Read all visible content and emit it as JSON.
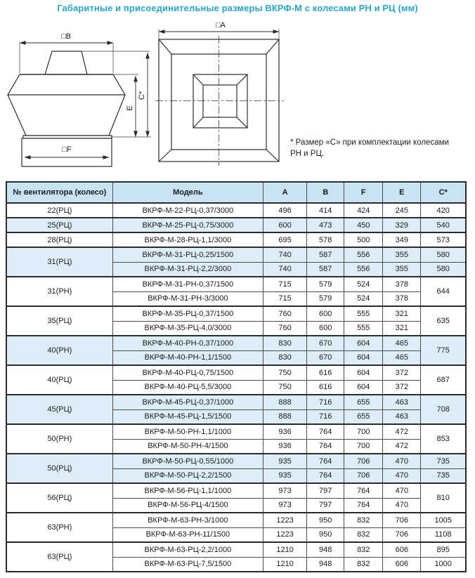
{
  "title": "Габаритные и присоединительные размеры ВКРФ-М с колесами РН и РЦ (мм)",
  "note": {
    "line1": "* Размер «С» при комплектации колесами",
    "line2": "РН и РЦ."
  },
  "diagram": {
    "labels": {
      "a": "□A",
      "b": "□B",
      "f": "□F",
      "e": "E",
      "c": "C*"
    }
  },
  "colors": {
    "title_accent": "#2aa5c6",
    "header_bg": "#c8e4f2",
    "row_alt_bg": "#dcedf7",
    "border": "#2b2b2b"
  },
  "table": {
    "headers": [
      "№ вентилятора (колесо)",
      "Модель",
      "A",
      "B",
      "F",
      "E",
      "C*"
    ],
    "groups": [
      {
        "no": "22(РЦ)",
        "alt": false,
        "rows": [
          {
            "model": "ВКРФ-М-22-РЦ-0,37/3000",
            "a": "496",
            "b": "414",
            "f": "424",
            "e": "245",
            "c": "420"
          }
        ]
      },
      {
        "no": "25(РЦ)",
        "alt": true,
        "rows": [
          {
            "model": "ВКРФ-М-25-РЦ-0,75/3000",
            "a": "600",
            "b": "473",
            "f": "450",
            "e": "329",
            "c": "540"
          }
        ]
      },
      {
        "no": "28(РЦ)",
        "alt": false,
        "rows": [
          {
            "model": "ВКРФ-М-28-РЦ-1,1/3000",
            "a": "695",
            "b": "578",
            "f": "500",
            "e": "349",
            "c": "573"
          }
        ]
      },
      {
        "no": "31(РЦ)",
        "alt": true,
        "rows": [
          {
            "model": "ВКРФ-М-31-РЦ-0,25/1500",
            "a": "740",
            "b": "587",
            "f": "556",
            "e": "355",
            "c": "580"
          },
          {
            "model": "ВКРФ-М-31-РЦ-2,2/3000",
            "a": "740",
            "b": "587",
            "f": "556",
            "e": "355",
            "c": "580"
          }
        ]
      },
      {
        "no": "31(РН)",
        "alt": false,
        "c_merged": "644",
        "rows": [
          {
            "model": "ВКРФ-М-31-РН-0,37/1500",
            "a": "715",
            "b": "579",
            "f": "524",
            "e": "378"
          },
          {
            "model": "ВКРФ-М-31-РН-3/3000",
            "a": "715",
            "b": "579",
            "f": "524",
            "e": "378"
          }
        ]
      },
      {
        "no": "35(РЦ)",
        "alt": false,
        "c_merged": "635",
        "rows": [
          {
            "model": "ВКРФ-М-35-РЦ-0,37/1500",
            "a": "760",
            "b": "600",
            "f": "555",
            "e": "321"
          },
          {
            "model": "ВКРФ-М-35-РЦ-4,0/3000",
            "a": "760",
            "b": "600",
            "f": "555",
            "e": "321"
          }
        ]
      },
      {
        "no": "40(РН)",
        "alt": true,
        "c_merged": "775",
        "rows": [
          {
            "model": "ВКРФ-М-40-РН-0,37/1000",
            "a": "830",
            "b": "670",
            "f": "604",
            "e": "465"
          },
          {
            "model": "ВКРФ-М-40-РН-1,1/1500",
            "a": "830",
            "b": "670",
            "f": "604",
            "e": "465"
          }
        ]
      },
      {
        "no": "40(РЦ)",
        "alt": false,
        "c_merged": "687",
        "rows": [
          {
            "model": "ВКРФ-М-40-РЦ-0,75/1500",
            "a": "750",
            "b": "616",
            "f": "604",
            "e": "372"
          },
          {
            "model": "ВКРФ-М-40-РЦ-5,5/3000",
            "a": "750",
            "b": "616",
            "f": "604",
            "e": "372"
          }
        ]
      },
      {
        "no": "45(РЦ)",
        "alt": true,
        "c_merged": "708",
        "rows": [
          {
            "model": "ВКРФ-М-45-РЦ-0,37/1000",
            "a": "888",
            "b": "716",
            "f": "655",
            "e": "463"
          },
          {
            "model": "ВКРФ-М-45-РЦ-1,5/1500",
            "a": "888",
            "b": "716",
            "f": "655",
            "e": "463"
          }
        ]
      },
      {
        "no": "50(РН)",
        "alt": false,
        "c_merged": "853",
        "rows": [
          {
            "model": "ВКРФ-М-50-РН-1,1/1000",
            "a": "936",
            "b": "764",
            "f": "700",
            "e": "472"
          },
          {
            "model": "ВКРФ-М-50-РН-4/1500",
            "a": "936",
            "b": "764",
            "f": "700",
            "e": "472"
          }
        ]
      },
      {
        "no": "50(РЦ)",
        "alt": true,
        "rows": [
          {
            "model": "ВКРФ-М-50-РЦ-0,55/1000",
            "a": "935",
            "b": "764",
            "f": "706",
            "e": "470",
            "c": "735"
          },
          {
            "model": "ВКРФ-М-50-РЦ-2,2/1500",
            "a": "935",
            "b": "764",
            "f": "706",
            "e": "470",
            "c": "735"
          }
        ]
      },
      {
        "no": "56(РЦ)",
        "alt": false,
        "c_merged": "810",
        "rows": [
          {
            "model": "ВКРФ-М-56-РЦ-1,1/1000",
            "a": "973",
            "b": "797",
            "f": "764",
            "e": "470"
          },
          {
            "model": "ВКРФ-М-56-РЦ-4/1500",
            "a": "973",
            "b": "797",
            "f": "764",
            "e": "470"
          }
        ]
      },
      {
        "no": "63(РН)",
        "alt": false,
        "rows": [
          {
            "model": "ВКРФ-М-63-РН-3/1000",
            "a": "1223",
            "b": "950",
            "f": "832",
            "e": "706",
            "c": "1005"
          },
          {
            "model": "ВКРФ-М-63-РН-11/1500",
            "a": "1223",
            "b": "950",
            "f": "832",
            "e": "706",
            "c": "1108"
          }
        ]
      },
      {
        "no": "63(РЦ)",
        "alt": false,
        "rows": [
          {
            "model": "ВКРФ-М-63-РЦ-2,2/1000",
            "a": "1210",
            "b": "948",
            "f": "832",
            "e": "606",
            "c": "895"
          },
          {
            "model": "ВКРФ-М-63-РЦ-7,5/1500",
            "a": "1210",
            "b": "948",
            "f": "832",
            "e": "606",
            "c": "1000"
          }
        ]
      }
    ]
  }
}
